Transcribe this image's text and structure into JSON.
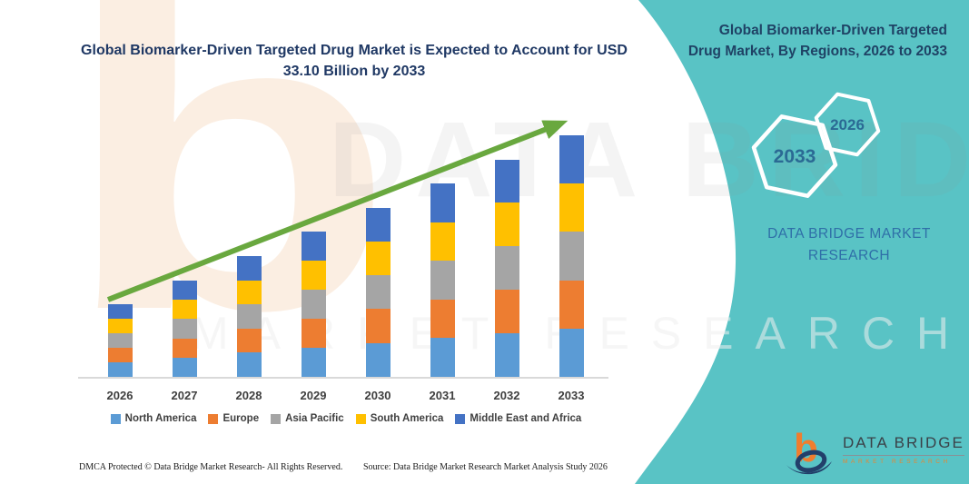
{
  "chart_data": {
    "type": "bar",
    "stacked": true,
    "title": "Global Biomarker-Driven Targeted Drug Market is Expected to Account for USD 33.10 Billion by 2033",
    "unit": "USD Billion",
    "categories": [
      "2026",
      "2027",
      "2028",
      "2029",
      "2030",
      "2031",
      "2032",
      "2033"
    ],
    "series": [
      {
        "name": "North America",
        "color": "#5B9BD5",
        "values": [
          1.98,
          2.64,
          3.3,
          3.98,
          4.64,
          5.3,
          5.96,
          6.62
        ]
      },
      {
        "name": "Europe",
        "color": "#ED7D31",
        "values": [
          1.98,
          2.64,
          3.3,
          3.98,
          4.64,
          5.3,
          5.96,
          6.62
        ]
      },
      {
        "name": "Asia Pacific",
        "color": "#A5A5A5",
        "values": [
          1.98,
          2.64,
          3.3,
          3.98,
          4.64,
          5.3,
          5.96,
          6.62
        ]
      },
      {
        "name": "South America",
        "color": "#FFC000",
        "values": [
          1.98,
          2.64,
          3.3,
          3.98,
          4.64,
          5.3,
          5.96,
          6.62
        ]
      },
      {
        "name": "Middle East and Africa",
        "color": "#4472C4",
        "values": [
          1.98,
          2.64,
          3.3,
          3.98,
          4.64,
          5.3,
          5.96,
          6.62
        ]
      }
    ],
    "totals": [
      9.9,
      13.2,
      16.5,
      19.9,
      23.2,
      26.5,
      29.8,
      33.1
    ],
    "ylim": [
      0,
      33.1
    ],
    "grid": false,
    "axis_labels_visible": false,
    "legend_position": "bottom",
    "annotations": {
      "trend_arrow": true,
      "arrow_color": "#69A83F"
    }
  },
  "sidebar": {
    "title": "Global Biomarker-Driven Targeted Drug Market, By Regions, 2026 to 2033",
    "hexagon_badges": [
      {
        "label": "2033"
      },
      {
        "label": "2026"
      }
    ],
    "brand_text": "DATA BRIDGE MARKET RESEARCH",
    "colors": {
      "background": "#59C3C5",
      "title_text": "#1F4265",
      "hexagon_text": "#2B6A94",
      "brand_text": "#2F6FA8"
    }
  },
  "logo": {
    "b_glyph": "b",
    "name": "DATA BRIDGE",
    "tagline": "MARKET RESEARCH"
  },
  "watermarks": {
    "letter": "b",
    "brand": "DATA BRIDGE",
    "tagline": "MARKET RESEARCH"
  },
  "footer": {
    "dmca": "DMCA Protected © Data Bridge Market Research-  All Rights Reserved.",
    "source": "Source: Data Bridge Market Research  Market Analysis Study 2026"
  }
}
